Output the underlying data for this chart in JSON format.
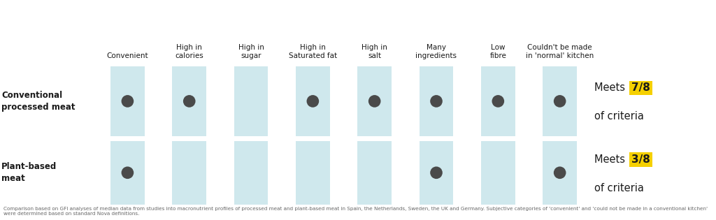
{
  "categories": [
    "Convenient",
    "High in\ncalories",
    "High in\nsugar",
    "High in\nSaturated fat",
    "High in\nsalt",
    "Many\ningredients",
    "Low\nfibre",
    "Couldn't be made\nin 'normal' kitchen"
  ],
  "row_labels": [
    "Conventional\nprocessed meat",
    "Plant-based\nmeat"
  ],
  "conventional_filled": [
    true,
    true,
    false,
    true,
    true,
    true,
    true,
    true
  ],
  "plantbased_filled": [
    true,
    false,
    false,
    false,
    false,
    true,
    false,
    true
  ],
  "conventional_score": "7/8",
  "plantbased_score": "3/8",
  "col_bg_color": "#cfe8ed",
  "dot_color": "#4a4a4a",
  "highlight_color": "#f5d000",
  "text_color": "#1a1a1a",
  "background_color": "#ffffff",
  "footer_text": "Comparison based on GFI analyses of median data from studies into macronutrient profiles of processed meat and plant-based meat in Spain, the Netherlands, Sweden, the UK and Germany. Subjective categories of 'convenient' and 'could not be made in a conventional kitchen' were determined based on standard Nova definitions."
}
